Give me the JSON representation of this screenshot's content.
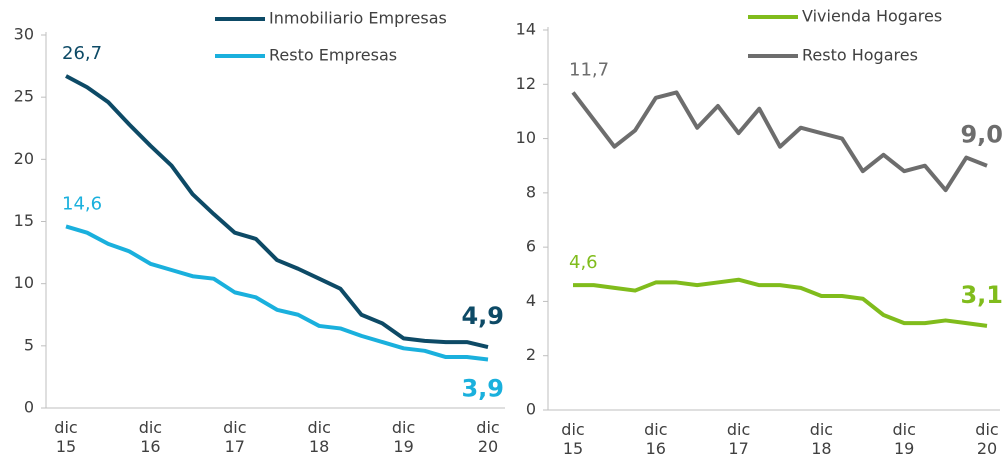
{
  "chart_data": [
    {
      "type": "line",
      "categories": [
        "dic\n15",
        null,
        null,
        null,
        "dic\n16",
        null,
        null,
        null,
        "dic\n17",
        null,
        null,
        null,
        "dic\n18",
        null,
        null,
        null,
        "dic\n19",
        null,
        null,
        null,
        "dic\n20"
      ],
      "ylim": [
        0,
        30
      ],
      "yticks": [
        0,
        5,
        10,
        15,
        20,
        25,
        30
      ],
      "series": [
        {
          "name": "Inmobiliario Empresas",
          "color": "#0d4a66",
          "values": [
            26.7,
            25.8,
            24.6,
            22.8,
            21.1,
            19.5,
            17.2,
            15.6,
            14.1,
            13.6,
            11.9,
            11.2,
            10.4,
            9.6,
            7.5,
            6.8,
            5.6,
            5.4,
            5.3,
            5.3,
            4.9
          ],
          "value_labels": [
            "26,7",
            null,
            null,
            null,
            null,
            null,
            null,
            null,
            null,
            null,
            null,
            null,
            null,
            null,
            null,
            null,
            null,
            null,
            null,
            null,
            "4,9"
          ]
        },
        {
          "name": "Resto Empresas",
          "color": "#1ab0dd",
          "values": [
            14.6,
            14.1,
            13.2,
            12.6,
            11.6,
            11.1,
            10.6,
            10.4,
            9.3,
            8.9,
            7.9,
            7.5,
            6.6,
            6.4,
            5.8,
            5.3,
            4.8,
            4.6,
            4.1,
            4.1,
            3.9
          ],
          "value_labels": [
            "14,6",
            null,
            null,
            null,
            null,
            null,
            null,
            null,
            null,
            null,
            null,
            null,
            null,
            null,
            null,
            null,
            null,
            null,
            null,
            null,
            "3,9"
          ]
        }
      ]
    },
    {
      "type": "line",
      "categories": [
        "dic\n15",
        null,
        null,
        null,
        "dic\n16",
        null,
        null,
        null,
        "dic\n17",
        null,
        null,
        null,
        "dic\n18",
        null,
        null,
        null,
        "dic\n19",
        null,
        null,
        null,
        "dic\n20"
      ],
      "ylim": [
        0,
        14
      ],
      "yticks": [
        0,
        2,
        4,
        6,
        8,
        10,
        12,
        14
      ],
      "series": [
        {
          "name": "Vivienda Hogares",
          "color": "#80bc1c",
          "values": [
            4.6,
            4.6,
            4.5,
            4.4,
            4.7,
            4.7,
            4.6,
            4.7,
            4.8,
            4.6,
            4.6,
            4.5,
            4.2,
            4.2,
            4.1,
            3.5,
            3.2,
            3.2,
            3.3,
            3.2,
            3.1
          ],
          "value_labels": [
            "4,6",
            null,
            null,
            null,
            null,
            null,
            null,
            null,
            null,
            null,
            null,
            null,
            null,
            null,
            null,
            null,
            null,
            null,
            null,
            null,
            "3,1"
          ]
        },
        {
          "name": "Resto Hogares",
          "color": "#6d6d6d",
          "values": [
            11.7,
            10.7,
            9.7,
            10.3,
            11.5,
            11.7,
            10.4,
            11.2,
            10.2,
            11.1,
            9.7,
            10.4,
            10.2,
            10.0,
            8.8,
            9.4,
            8.8,
            9.0,
            8.1,
            9.3,
            9.0
          ],
          "value_labels": [
            "11,7",
            null,
            null,
            null,
            null,
            null,
            null,
            null,
            null,
            null,
            null,
            null,
            null,
            null,
            null,
            null,
            null,
            null,
            null,
            null,
            "9,0"
          ]
        }
      ]
    }
  ]
}
